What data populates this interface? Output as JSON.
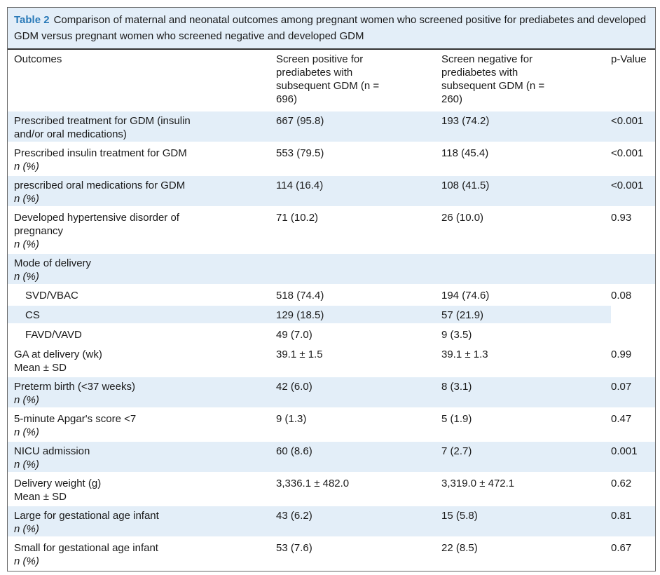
{
  "caption": {
    "label": "Table 2",
    "text": "Comparison of maternal and neonatal outcomes among pregnant women who screened positive for prediabetes and developed GDM versus pregnant women who screened negative and developed GDM"
  },
  "table": {
    "header": [
      "Outcomes",
      "Screen positive for prediabetes with subsequent GDM (n = 696)",
      "Screen negative for prediabetes with subsequent GDM (n = 260)",
      "p-Value"
    ],
    "rows": [
      {
        "outcome": "Prescribed treatment for GDM (insulin and/or oral medications)",
        "positive": "667 (95.8)",
        "negative": "193 (74.2)",
        "p_value": "<0.001"
      },
      {
        "outcome": "Prescribed insulin treatment for GDM",
        "unit": "n (%)",
        "positive": "553 (79.5)",
        "negative": "118 (45.4)",
        "p_value": "<0.001"
      },
      {
        "outcome": "prescribed oral medications for GDM",
        "unit": "n (%)",
        "positive": "114 (16.4)",
        "negative": "108 (41.5)",
        "p_value": "<0.001"
      },
      {
        "outcome": "Developed hypertensive disorder of pregnancy",
        "unit": "n (%)",
        "positive": "71 (10.2)",
        "negative": "26 (10.0)",
        "p_value": "0.93"
      },
      {
        "outcome": "Mode of delivery",
        "unit": "n (%)",
        "p_value": "0.08",
        "subrows": [
          {
            "label": "SVD/VBAC",
            "positive": "518 (74.4)",
            "negative": "194 (74.6)"
          },
          {
            "label": "CS",
            "positive": "129 (18.5)",
            "negative": "57 (21.9)"
          },
          {
            "label": "FAVD/VAVD",
            "positive": "49 (7.0)",
            "negative": "9 (3.5)"
          }
        ]
      },
      {
        "outcome": "GA at delivery (wk)",
        "unit": "Mean ± SD",
        "positive": "39.1 ± 1.5",
        "negative": "39.1 ± 1.3",
        "p_value": "0.99"
      },
      {
        "outcome": "Preterm birth (<37 weeks)",
        "unit": "n (%)",
        "positive": "42 (6.0)",
        "negative": "8 (3.1)",
        "p_value": "0.07"
      },
      {
        "outcome": "5-minute Apgar's score <7",
        "unit": "n (%)",
        "positive": "9 (1.3)",
        "negative": "5 (1.9)",
        "p_value": "0.47"
      },
      {
        "outcome": "NICU admission",
        "unit": "n (%)",
        "positive": "60 (8.6)",
        "negative": "7 (2.7)",
        "p_value": "0.001"
      },
      {
        "outcome": "Delivery weight (g)",
        "unit": "Mean ± SD",
        "positive": "3,336.1 ± 482.0",
        "negative": "3,319.0 ± 472.1",
        "p_value": "0.62"
      },
      {
        "outcome": "Large for gestational age infant",
        "unit": "n (%)",
        "positive": "43 (6.2)",
        "negative": "15 (5.8)",
        "p_value": "0.81"
      },
      {
        "outcome": "Small for gestational age infant",
        "unit": "n (%)",
        "positive": "53 (7.6)",
        "negative": "22 (8.5)",
        "p_value": "0.67"
      }
    ]
  }
}
